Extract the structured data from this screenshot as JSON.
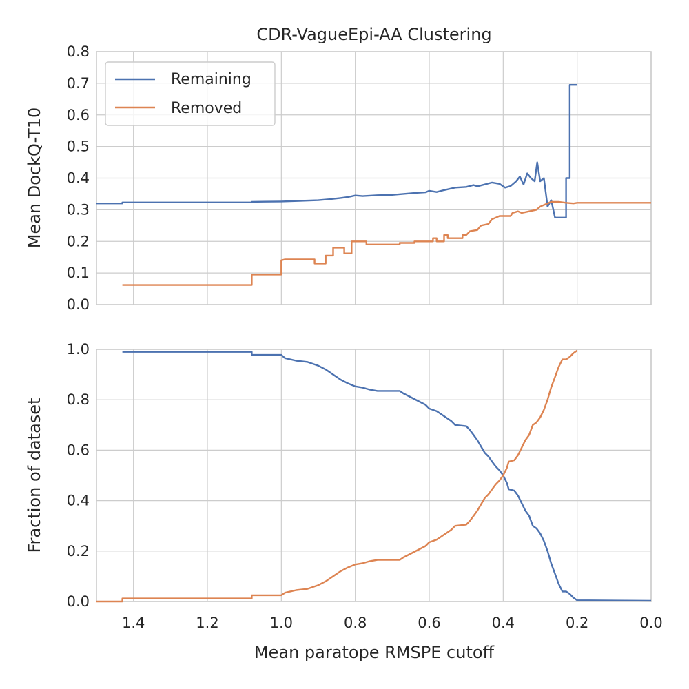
{
  "chart_data": [
    {
      "type": "line",
      "title": "CDR-VagueEpi-AA Clustering",
      "xlabel": "",
      "ylabel": "Mean DockQ-T10",
      "xlim": [
        1.5,
        0.0
      ],
      "ylim": [
        0.0,
        0.8
      ],
      "x_reversed": true,
      "x_ticks": [
        1.4,
        1.2,
        1.0,
        0.8,
        0.6,
        0.4,
        0.2,
        0.0
      ],
      "x_tick_labels_visible": false,
      "y_ticks": [
        0.0,
        0.1,
        0.2,
        0.3,
        0.4,
        0.5,
        0.6,
        0.7,
        0.8
      ],
      "y_tick_labels": [
        "0.0",
        "0.1",
        "0.2",
        "0.3",
        "0.4",
        "0.5",
        "0.6",
        "0.7",
        "0.8"
      ],
      "grid": true,
      "legend": {
        "placement": "top-left",
        "entries": [
          {
            "label": "Remaining",
            "color": "#4c72b0"
          },
          {
            "label": "Removed",
            "color": "#dd8452"
          }
        ]
      },
      "series": [
        {
          "name": "Remaining",
          "color": "#4c72b0",
          "step": true,
          "points": [
            [
              1.5,
              0.32
            ],
            [
              1.43,
              0.32
            ],
            [
              1.43,
              0.323
            ],
            [
              1.08,
              0.323
            ],
            [
              1.08,
              0.325
            ],
            [
              1.0,
              0.326
            ],
            [
              0.95,
              0.328
            ],
            [
              0.9,
              0.33
            ],
            [
              0.87,
              0.333
            ],
            [
              0.84,
              0.337
            ],
            [
              0.82,
              0.34
            ],
            [
              0.8,
              0.345
            ],
            [
              0.78,
              0.343
            ],
            [
              0.74,
              0.346
            ],
            [
              0.7,
              0.347
            ],
            [
              0.67,
              0.35
            ],
            [
              0.64,
              0.353
            ],
            [
              0.61,
              0.355
            ],
            [
              0.6,
              0.36
            ],
            [
              0.58,
              0.356
            ],
            [
              0.56,
              0.362
            ],
            [
              0.53,
              0.37
            ],
            [
              0.5,
              0.372
            ],
            [
              0.48,
              0.378
            ],
            [
              0.47,
              0.374
            ],
            [
              0.45,
              0.38
            ],
            [
              0.43,
              0.386
            ],
            [
              0.41,
              0.382
            ],
            [
              0.395,
              0.37
            ],
            [
              0.38,
              0.375
            ],
            [
              0.365,
              0.39
            ],
            [
              0.355,
              0.405
            ],
            [
              0.345,
              0.38
            ],
            [
              0.335,
              0.415
            ],
            [
              0.325,
              0.4
            ],
            [
              0.315,
              0.39
            ],
            [
              0.308,
              0.45
            ],
            [
              0.3,
              0.39
            ],
            [
              0.29,
              0.4
            ],
            [
              0.28,
              0.31
            ],
            [
              0.27,
              0.33
            ],
            [
              0.26,
              0.275
            ],
            [
              0.23,
              0.275
            ],
            [
              0.23,
              0.4
            ],
            [
              0.22,
              0.4
            ],
            [
              0.22,
              0.695
            ],
            [
              0.2,
              0.695
            ]
          ]
        },
        {
          "name": "Removed",
          "color": "#dd8452",
          "step": true,
          "points": [
            [
              1.43,
              0.062
            ],
            [
              1.08,
              0.062
            ],
            [
              1.08,
              0.095
            ],
            [
              1.0,
              0.095
            ],
            [
              1.0,
              0.14
            ],
            [
              0.99,
              0.143
            ],
            [
              0.91,
              0.143
            ],
            [
              0.91,
              0.13
            ],
            [
              0.88,
              0.13
            ],
            [
              0.88,
              0.155
            ],
            [
              0.86,
              0.155
            ],
            [
              0.86,
              0.18
            ],
            [
              0.83,
              0.18
            ],
            [
              0.83,
              0.162
            ],
            [
              0.81,
              0.162
            ],
            [
              0.81,
              0.2
            ],
            [
              0.77,
              0.2
            ],
            [
              0.77,
              0.19
            ],
            [
              0.68,
              0.19
            ],
            [
              0.68,
              0.195
            ],
            [
              0.64,
              0.195
            ],
            [
              0.64,
              0.2
            ],
            [
              0.59,
              0.2
            ],
            [
              0.59,
              0.21
            ],
            [
              0.58,
              0.21
            ],
            [
              0.58,
              0.2
            ],
            [
              0.56,
              0.2
            ],
            [
              0.56,
              0.22
            ],
            [
              0.55,
              0.22
            ],
            [
              0.55,
              0.21
            ],
            [
              0.51,
              0.21
            ],
            [
              0.51,
              0.22
            ],
            [
              0.5,
              0.22
            ],
            [
              0.49,
              0.232
            ],
            [
              0.47,
              0.236
            ],
            [
              0.46,
              0.25
            ],
            [
              0.44,
              0.255
            ],
            [
              0.43,
              0.27
            ],
            [
              0.42,
              0.275
            ],
            [
              0.41,
              0.28
            ],
            [
              0.38,
              0.28
            ],
            [
              0.375,
              0.29
            ],
            [
              0.36,
              0.295
            ],
            [
              0.35,
              0.29
            ],
            [
              0.33,
              0.295
            ],
            [
              0.31,
              0.3
            ],
            [
              0.3,
              0.31
            ],
            [
              0.29,
              0.315
            ],
            [
              0.27,
              0.325
            ],
            [
              0.25,
              0.325
            ],
            [
              0.23,
              0.322
            ],
            [
              0.21,
              0.32
            ],
            [
              0.2,
              0.322
            ],
            [
              0.0,
              0.322
            ]
          ]
        }
      ]
    },
    {
      "type": "line",
      "title": "",
      "xlabel": "Mean paratope RMSPE cutoff",
      "ylabel": "Fraction of dataset",
      "xlim": [
        1.5,
        0.0
      ],
      "ylim": [
        0.0,
        1.0
      ],
      "x_reversed": true,
      "x_ticks": [
        1.4,
        1.2,
        1.0,
        0.8,
        0.6,
        0.4,
        0.2,
        0.0
      ],
      "x_tick_labels": [
        "1.4",
        "1.2",
        "1.0",
        "0.8",
        "0.6",
        "0.4",
        "0.2",
        "0.0"
      ],
      "y_ticks": [
        0.0,
        0.2,
        0.4,
        0.6,
        0.8,
        1.0
      ],
      "y_tick_labels": [
        "0.0",
        "0.2",
        "0.4",
        "0.6",
        "0.8",
        "1.0"
      ],
      "grid": true,
      "series": [
        {
          "name": "Remaining",
          "color": "#4c72b0",
          "step": true,
          "points": [
            [
              1.43,
              0.99
            ],
            [
              1.08,
              0.99
            ],
            [
              1.08,
              0.978
            ],
            [
              1.0,
              0.978
            ],
            [
              0.99,
              0.965
            ],
            [
              0.96,
              0.955
            ],
            [
              0.93,
              0.95
            ],
            [
              0.9,
              0.935
            ],
            [
              0.88,
              0.92
            ],
            [
              0.86,
              0.9
            ],
            [
              0.84,
              0.88
            ],
            [
              0.82,
              0.865
            ],
            [
              0.8,
              0.853
            ],
            [
              0.78,
              0.848
            ],
            [
              0.76,
              0.84
            ],
            [
              0.74,
              0.835
            ],
            [
              0.68,
              0.835
            ],
            [
              0.67,
              0.825
            ],
            [
              0.65,
              0.81
            ],
            [
              0.63,
              0.795
            ],
            [
              0.61,
              0.78
            ],
            [
              0.6,
              0.765
            ],
            [
              0.58,
              0.755
            ],
            [
              0.56,
              0.735
            ],
            [
              0.54,
              0.715
            ],
            [
              0.53,
              0.7
            ],
            [
              0.5,
              0.695
            ],
            [
              0.49,
              0.68
            ],
            [
              0.48,
              0.66
            ],
            [
              0.47,
              0.64
            ],
            [
              0.46,
              0.615
            ],
            [
              0.45,
              0.59
            ],
            [
              0.44,
              0.575
            ],
            [
              0.43,
              0.555
            ],
            [
              0.42,
              0.535
            ],
            [
              0.41,
              0.52
            ],
            [
              0.4,
              0.5
            ],
            [
              0.39,
              0.47
            ],
            [
              0.385,
              0.445
            ],
            [
              0.37,
              0.44
            ],
            [
              0.36,
              0.42
            ],
            [
              0.35,
              0.39
            ],
            [
              0.34,
              0.36
            ],
            [
              0.33,
              0.34
            ],
            [
              0.32,
              0.3
            ],
            [
              0.31,
              0.29
            ],
            [
              0.3,
              0.27
            ],
            [
              0.29,
              0.24
            ],
            [
              0.28,
              0.2
            ],
            [
              0.27,
              0.15
            ],
            [
              0.26,
              0.11
            ],
            [
              0.25,
              0.07
            ],
            [
              0.24,
              0.04
            ],
            [
              0.23,
              0.04
            ],
            [
              0.22,
              0.03
            ],
            [
              0.21,
              0.015
            ],
            [
              0.2,
              0.005
            ],
            [
              0.0,
              0.003
            ]
          ]
        },
        {
          "name": "Removed",
          "color": "#dd8452",
          "step": true,
          "points": [
            [
              1.5,
              0.0
            ],
            [
              1.43,
              0.0
            ],
            [
              1.43,
              0.012
            ],
            [
              1.08,
              0.012
            ],
            [
              1.08,
              0.025
            ],
            [
              1.0,
              0.025
            ],
            [
              0.99,
              0.035
            ],
            [
              0.96,
              0.045
            ],
            [
              0.93,
              0.05
            ],
            [
              0.9,
              0.065
            ],
            [
              0.88,
              0.08
            ],
            [
              0.86,
              0.1
            ],
            [
              0.84,
              0.12
            ],
            [
              0.82,
              0.135
            ],
            [
              0.8,
              0.147
            ],
            [
              0.78,
              0.152
            ],
            [
              0.76,
              0.16
            ],
            [
              0.74,
              0.165
            ],
            [
              0.68,
              0.165
            ],
            [
              0.67,
              0.175
            ],
            [
              0.65,
              0.19
            ],
            [
              0.63,
              0.205
            ],
            [
              0.61,
              0.22
            ],
            [
              0.6,
              0.235
            ],
            [
              0.58,
              0.245
            ],
            [
              0.56,
              0.265
            ],
            [
              0.54,
              0.285
            ],
            [
              0.53,
              0.3
            ],
            [
              0.5,
              0.305
            ],
            [
              0.49,
              0.32
            ],
            [
              0.48,
              0.34
            ],
            [
              0.47,
              0.36
            ],
            [
              0.46,
              0.385
            ],
            [
              0.45,
              0.41
            ],
            [
              0.44,
              0.425
            ],
            [
              0.43,
              0.445
            ],
            [
              0.42,
              0.465
            ],
            [
              0.41,
              0.48
            ],
            [
              0.4,
              0.5
            ],
            [
              0.39,
              0.53
            ],
            [
              0.385,
              0.555
            ],
            [
              0.37,
              0.56
            ],
            [
              0.36,
              0.58
            ],
            [
              0.35,
              0.61
            ],
            [
              0.34,
              0.64
            ],
            [
              0.33,
              0.66
            ],
            [
              0.32,
              0.7
            ],
            [
              0.31,
              0.71
            ],
            [
              0.3,
              0.73
            ],
            [
              0.29,
              0.76
            ],
            [
              0.28,
              0.8
            ],
            [
              0.27,
              0.85
            ],
            [
              0.26,
              0.89
            ],
            [
              0.25,
              0.93
            ],
            [
              0.24,
              0.96
            ],
            [
              0.23,
              0.96
            ],
            [
              0.22,
              0.97
            ],
            [
              0.21,
              0.985
            ],
            [
              0.2,
              0.995
            ]
          ]
        }
      ]
    }
  ]
}
